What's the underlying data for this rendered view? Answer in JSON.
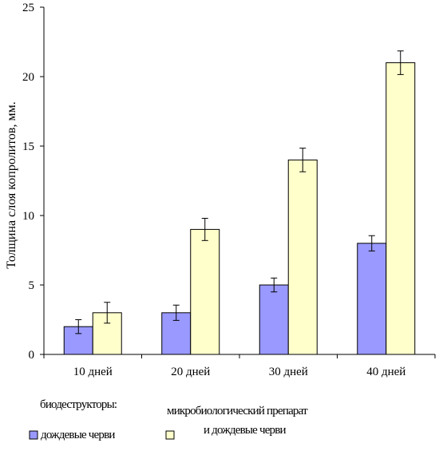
{
  "chart_data": {
    "type": "bar",
    "categories": [
      "10 дней",
      "20 дней",
      "30 дней",
      "40 дней"
    ],
    "series": [
      {
        "name": "дождевые черви",
        "values": [
          2,
          3,
          5,
          8
        ],
        "errors": [
          0.5,
          0.55,
          0.5,
          0.55
        ],
        "color": "#9999ff"
      },
      {
        "name": "микробиологический препарат и дождевые черви",
        "values": [
          3,
          9,
          14,
          21
        ],
        "errors": [
          0.75,
          0.8,
          0.85,
          0.85
        ],
        "color": "#ffffcc"
      }
    ],
    "ylabel": "Толщина слоя копролитов, мм.",
    "xlabel": "",
    "ylim": [
      0,
      25
    ],
    "yticks": [
      0,
      5,
      10,
      15,
      20,
      25
    ],
    "grid": false,
    "legend": {
      "title": "биодеструкторы:",
      "position": "bottom",
      "item1": "дождевые черви",
      "item2_line1": "микробиологический препарат",
      "item2_line2": "и дождевые черви"
    }
  }
}
